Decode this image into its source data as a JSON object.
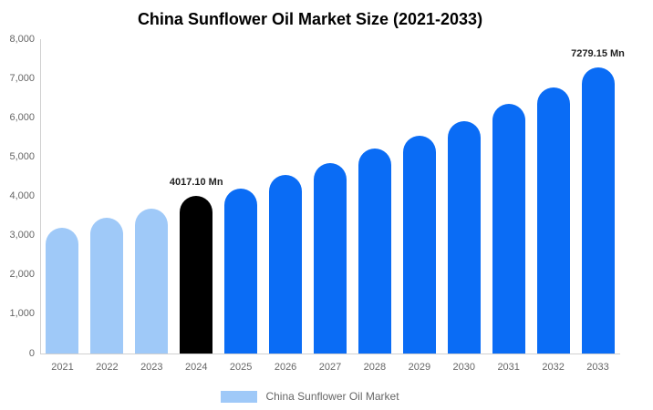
{
  "title": "China Sunflower Oil Market Size (2021-2033)",
  "legend": {
    "label": "China Sunflower Oil Market",
    "swatch_color": "#9FC9F8"
  },
  "colors": {
    "historical": "#9FC9F8",
    "base_year": "#000000",
    "forecast": "#0A6CF5",
    "axis_line": "#D0D0D0",
    "tick_text": "#666666",
    "annotation_text": "#222222"
  },
  "chart_data": {
    "type": "bar",
    "title": "China Sunflower Oil Market Size (2021-2033)",
    "categories": [
      "2021",
      "2022",
      "2023",
      "2024",
      "2025",
      "2026",
      "2027",
      "2028",
      "2029",
      "2030",
      "2031",
      "2032",
      "2033"
    ],
    "values": [
      3200,
      3450,
      3690,
      4017.1,
      4200,
      4550,
      4840,
      5210,
      5540,
      5910,
      6350,
      6760,
      7279.15
    ],
    "bar_roles": [
      "historical",
      "historical",
      "historical",
      "base_year",
      "forecast",
      "forecast",
      "forecast",
      "forecast",
      "forecast",
      "forecast",
      "forecast",
      "forecast",
      "forecast"
    ],
    "annotations": [
      {
        "index": 3,
        "text": "4017.10 Mn"
      },
      {
        "index": 12,
        "text": "7279.15 Mn"
      }
    ],
    "unit": "Mn",
    "xlabel": "",
    "ylabel": "",
    "ylim": [
      0,
      8000
    ],
    "yticks": [
      {
        "v": 0,
        "label": "0"
      },
      {
        "v": 1000,
        "label": "1,000"
      },
      {
        "v": 2000,
        "label": "2,000"
      },
      {
        "v": 3000,
        "label": "3,000"
      },
      {
        "v": 4000,
        "label": "4,000"
      },
      {
        "v": 5000,
        "label": "5,000"
      },
      {
        "v": 6000,
        "label": "6,000"
      },
      {
        "v": 7000,
        "label": "7,000"
      },
      {
        "v": 8000,
        "label": "8,000"
      }
    ],
    "grid": false,
    "legend_position": "bottom"
  }
}
